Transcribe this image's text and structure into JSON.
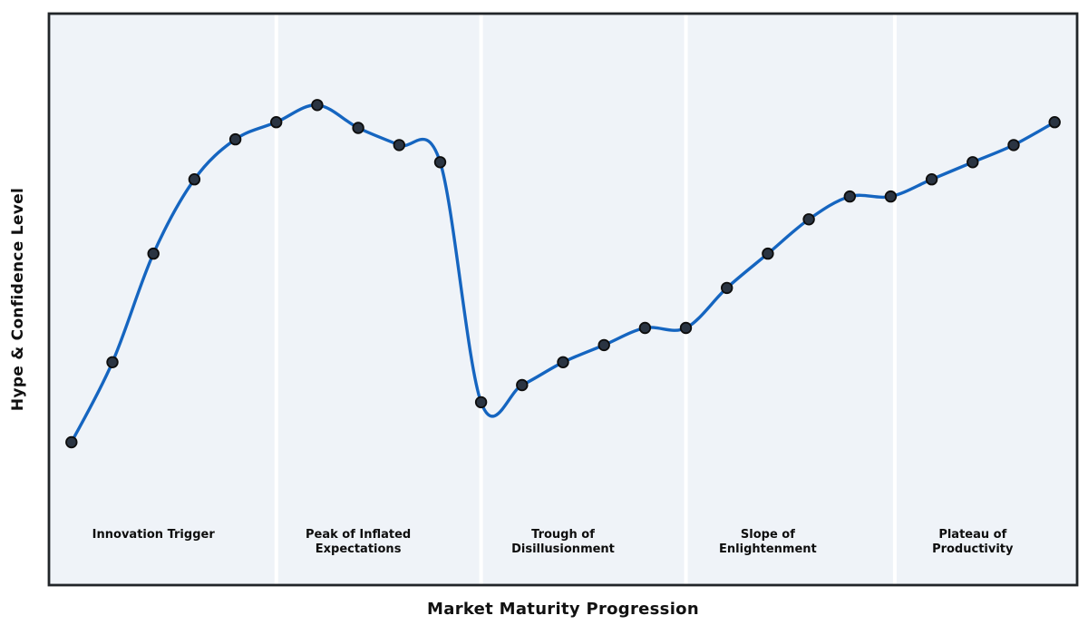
{
  "figure": {
    "background": "#ffffff",
    "plot_background": "#eff3f8",
    "spine_color": "#212529",
    "separator_color": "#ffffff"
  },
  "chart_data": {
    "type": "line",
    "title": "",
    "xlabel": "Market Maturity Progression",
    "ylabel": "Hype & Confidence Level",
    "x": [
      1,
      2,
      3,
      4,
      5,
      6,
      7,
      8,
      9,
      10,
      11,
      12,
      13,
      14,
      15,
      16,
      17,
      18,
      19,
      20,
      21,
      22,
      23,
      24,
      25
    ],
    "values": [
      25,
      39,
      58,
      71,
      78,
      81,
      84,
      80,
      77,
      74,
      32,
      35,
      39,
      42,
      45,
      45,
      52,
      58,
      64,
      68,
      68,
      71,
      74,
      77,
      81
    ],
    "xlim": [
      0.45,
      25.55
    ],
    "ylim": [
      0,
      100
    ],
    "grid": false,
    "legend": "none",
    "smoothing": "cubic-spline",
    "line_color": "#1565c0",
    "line_width": 3.4,
    "marker": {
      "shape": "circle",
      "radius": 5.8,
      "fill": "#2a3442",
      "edge_color": "#0d0d0d",
      "edge_width": 1.8
    },
    "phase_boundaries_x": [
      6.0,
      11.0,
      16.0,
      21.1
    ],
    "phases": [
      {
        "label": "Innovation Trigger",
        "line1": "Innovation Trigger",
        "line2": "",
        "center_x": 3.0
      },
      {
        "label": "Peak of Inflated Expectations",
        "line1": "Peak of Inflated",
        "line2": "Expectations",
        "center_x": 8.0
      },
      {
        "label": "Trough of Disillusionment",
        "line1": "Trough of",
        "line2": "Disillusionment",
        "center_x": 13.0
      },
      {
        "label": "Slope of Enlightenment",
        "line1": "Slope of",
        "line2": "Enlightenment",
        "center_x": 18.0
      },
      {
        "label": "Plateau of Productivity",
        "line1": "Plateau of",
        "line2": "Productivity",
        "center_x": 23.0
      }
    ]
  }
}
